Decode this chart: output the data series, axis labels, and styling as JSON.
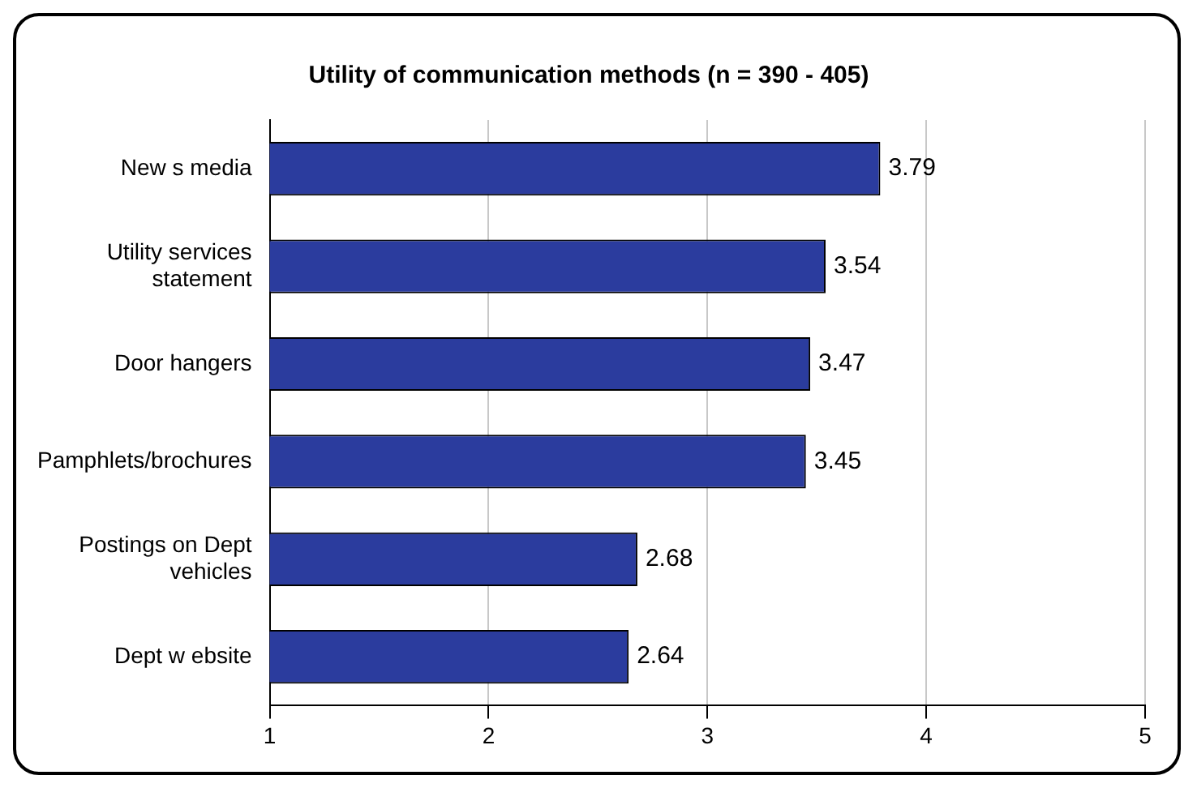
{
  "chart_data": {
    "type": "bar",
    "orientation": "horizontal",
    "title": "Utility of communication methods (n = 390 - 405)",
    "categories": [
      "New s media",
      "Utility services statement",
      "Door hangers",
      "Pamphlets/brochures",
      "Postings on Dept vehicles",
      "Dept w ebsite"
    ],
    "values": [
      3.79,
      3.54,
      3.47,
      3.45,
      2.68,
      2.64
    ],
    "color": "#2b3c9e",
    "xlim": [
      1,
      5
    ],
    "xticks": [
      1,
      2,
      3,
      4,
      5
    ],
    "grid": "x",
    "data_labels": true,
    "legend": false
  }
}
